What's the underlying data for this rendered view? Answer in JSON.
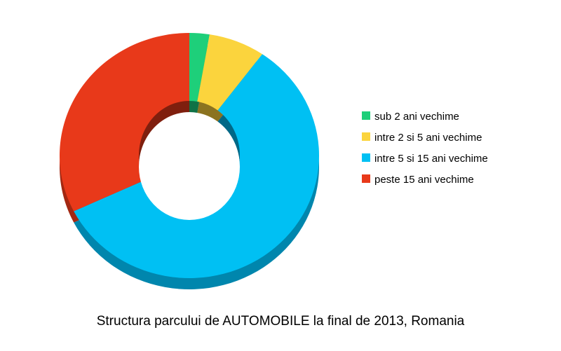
{
  "chart_data": {
    "type": "pie",
    "variant": "3d-donut",
    "title": "Structura parcului de AUTOMOBILE la final de 2013, Romania",
    "legend_position": "right",
    "slices": [
      {
        "label": "sub 2 ani vechime",
        "value": 2.5,
        "color": "#1ecf7a",
        "side_color": "#15925a"
      },
      {
        "label": "intre 2 si 5 ani vechime",
        "value": 7,
        "color": "#fbd43d",
        "side_color": "#b3942a"
      },
      {
        "label": "intre 5 si 15 ani vechime",
        "value": 58,
        "color": "#00c0f3",
        "side_color": "#0086ad"
      },
      {
        "label": "peste 15 ani vechime",
        "value": 32.5,
        "color": "#e8391a",
        "side_color": "#a32812"
      }
    ]
  }
}
